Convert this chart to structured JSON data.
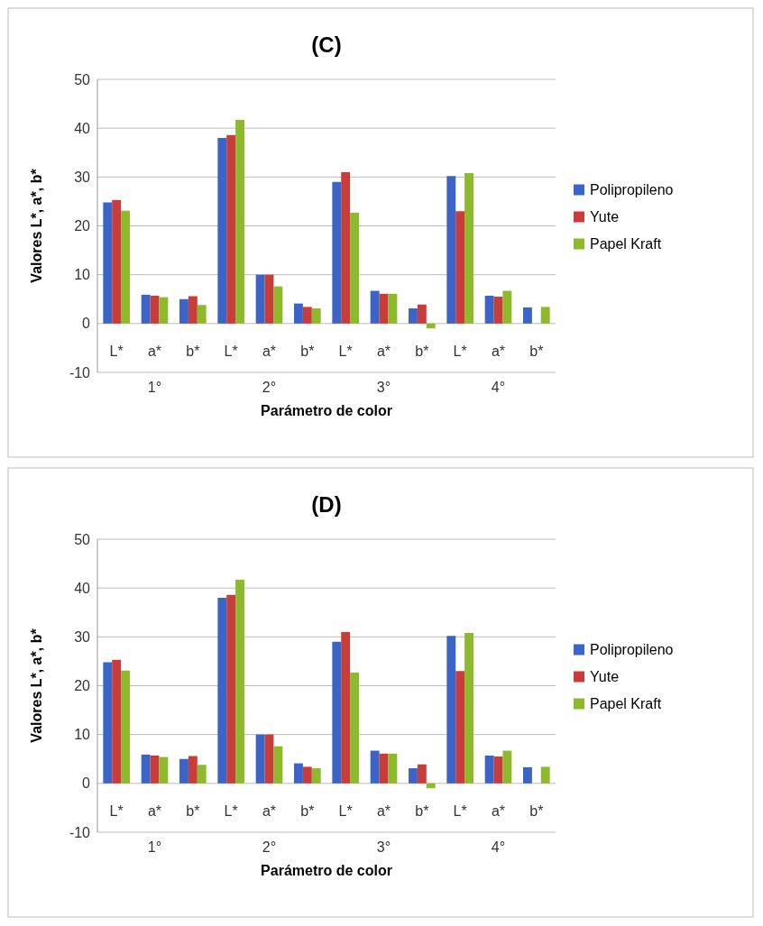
{
  "chart_data": [
    {
      "type": "bar",
      "title": "(C)",
      "xlabel": "Parámetro de color",
      "ylabel": "Valores L*, a*, b*",
      "categories": [
        "L*",
        "a*",
        "b*",
        "L*",
        "a*",
        "b*",
        "L*",
        "a*",
        "b*",
        "L*",
        "a*",
        "b*"
      ],
      "annotations": [
        "1°",
        "2°",
        "3°",
        "4°"
      ],
      "series": [
        {
          "name": "Polipropileno",
          "color": "#3a64c8",
          "values": [
            24.8,
            5.9,
            5,
            38,
            10,
            4.1,
            29,
            6.7,
            3.1,
            30.2,
            5.7,
            3.3
          ]
        },
        {
          "name": "Yute",
          "color": "#c83c3a",
          "values": [
            25.3,
            5.7,
            5.6,
            38.6,
            10,
            3.4,
            31,
            6.1,
            3.9,
            23,
            5.5,
            null
          ]
        },
        {
          "name": "Papel Kraft",
          "color": "#8cba2c",
          "values": [
            23.1,
            5.4,
            3.8,
            41.7,
            7.6,
            3.1,
            22.7,
            6.1,
            -1,
            30.8,
            6.7,
            3.4
          ]
        }
      ],
      "ylim": [
        -10,
        50
      ],
      "yticks": [
        -10,
        0,
        10,
        20,
        30,
        40,
        50
      ],
      "grid": "y",
      "legend": "right"
    },
    {
      "type": "bar",
      "title": "(D)",
      "xlabel": "Parámetro de color",
      "ylabel": "Valores L*, a*, b*",
      "categories": [
        "L*",
        "a*",
        "b*",
        "L*",
        "a*",
        "b*",
        "L*",
        "a*",
        "b*",
        "L*",
        "a*",
        "b*"
      ],
      "annotations": [
        "1°",
        "2°",
        "3°",
        "4°"
      ],
      "series": [
        {
          "name": "Polipropileno",
          "color": "#3a64c8",
          "values": [
            24.8,
            5.9,
            5,
            38,
            10,
            4.1,
            29,
            6.7,
            3.1,
            30.2,
            5.7,
            3.3
          ]
        },
        {
          "name": "Yute",
          "color": "#c83c3a",
          "values": [
            25.3,
            5.7,
            5.6,
            38.6,
            10,
            3.4,
            31,
            6.1,
            3.9,
            23,
            5.5,
            null
          ]
        },
        {
          "name": "Papel Kraft",
          "color": "#8cba2c",
          "values": [
            23.1,
            5.4,
            3.8,
            41.7,
            7.6,
            3.1,
            22.7,
            6.1,
            -1,
            30.8,
            6.7,
            3.4
          ]
        }
      ],
      "ylim": [
        -10,
        50
      ],
      "yticks": [
        -10,
        0,
        10,
        20,
        30,
        40,
        50
      ],
      "grid": "y",
      "legend": "right"
    }
  ]
}
